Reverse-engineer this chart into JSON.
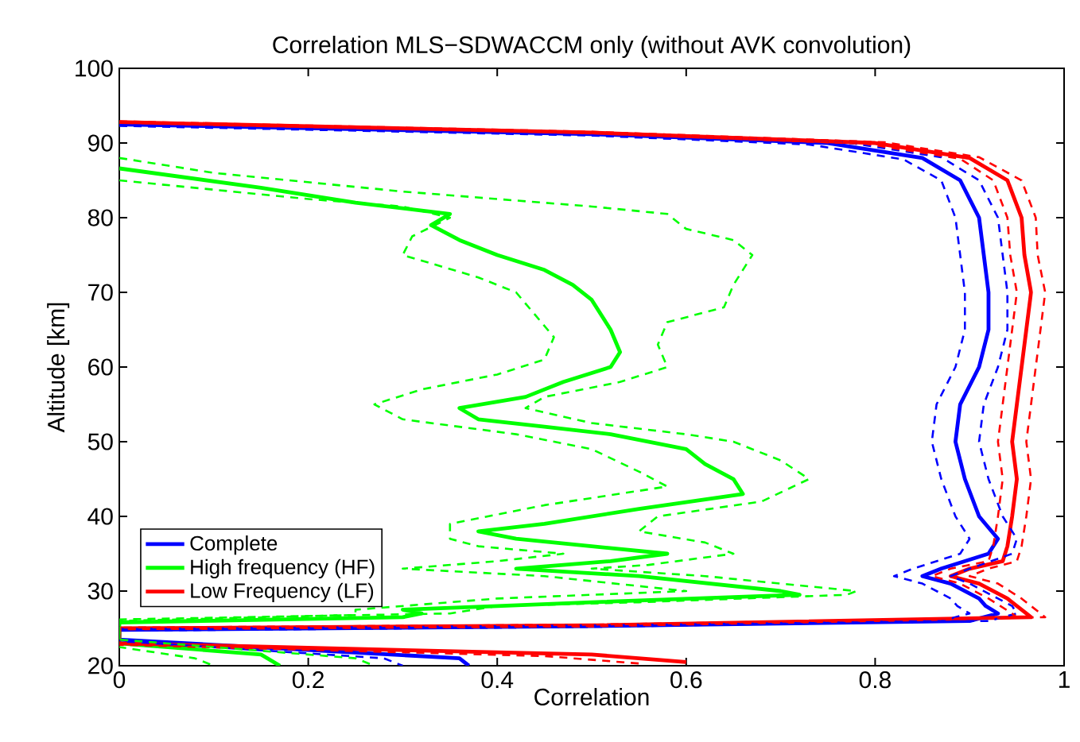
{
  "chart_data": {
    "type": "line",
    "title": "Correlation MLS−SDWACCM only (without AVK convolution)",
    "xlabel": "Correlation",
    "ylabel": "Altitude [km]",
    "xlim": [
      0,
      1
    ],
    "ylim": [
      20,
      100
    ],
    "xticks": [
      0,
      0.2,
      0.4,
      0.6,
      0.8,
      1
    ],
    "yticks": [
      20,
      30,
      40,
      50,
      60,
      70,
      80,
      90,
      100
    ],
    "grid": false,
    "legend": "bottom left",
    "marker": "none",
    "series": [
      {
        "name": "Complete",
        "color": "#0000ff",
        "line_style": "solid",
        "x": [
          0,
          0.5,
          0.75,
          0.85,
          0.89,
          0.91,
          0.915,
          0.92,
          0.92,
          0.91,
          0.89,
          0.885,
          0.895,
          0.91,
          0.93,
          0.92,
          0.87,
          0.85,
          0.88,
          0.91,
          0.917,
          0.93,
          0.9,
          0.5,
          0,
          0,
          0.36,
          0.37
        ],
        "values": [
          92.5,
          91.2,
          90,
          88,
          85,
          80,
          75,
          70,
          65,
          60,
          55,
          50,
          45,
          40,
          37,
          35,
          33,
          32,
          31,
          29,
          28,
          27,
          26,
          25.3,
          24.8,
          23.5,
          21,
          20
        ]
      },
      {
        "name": "High frequency (HF)",
        "color": "#00ff00",
        "line_style": "solid",
        "x": [
          0,
          0.15,
          0.25,
          0.35,
          0.33,
          0.36,
          0.4,
          0.45,
          0.48,
          0.5,
          0.52,
          0.53,
          0.52,
          0.47,
          0.43,
          0.36,
          0.38,
          0.45,
          0.52,
          0.6,
          0.62,
          0.65,
          0.66,
          0.55,
          0.45,
          0.38,
          0.42,
          0.5,
          0.58,
          0.52,
          0.42,
          0.55,
          0.7,
          0.72,
          0.5,
          0.4,
          0.3,
          0.32,
          0.3,
          0,
          0,
          0.15,
          0.17
        ],
        "values": [
          86.6,
          84,
          82,
          80.5,
          79,
          77,
          75,
          73,
          71,
          69,
          65,
          62,
          60,
          58,
          56,
          54.5,
          53,
          52,
          51,
          49,
          47,
          45,
          43,
          41,
          39,
          38,
          37,
          36,
          35,
          34,
          33,
          32,
          30,
          29.5,
          28.5,
          28,
          27.5,
          27,
          26.5,
          25.8,
          23,
          21.5,
          20
        ]
      },
      {
        "name": "Low Frequency (LF)",
        "color": "#ff0000",
        "line_style": "solid",
        "x": [
          0,
          0.5,
          0.8,
          0.9,
          0.94,
          0.955,
          0.958,
          0.965,
          0.96,
          0.955,
          0.95,
          0.945,
          0.95,
          0.945,
          0.94,
          0.935,
          0.9,
          0.88,
          0.91,
          0.94,
          0.96,
          0.965,
          0.5,
          0,
          0,
          0.5,
          0.6
        ],
        "values": [
          92.8,
          91.4,
          90,
          88,
          85,
          80,
          75,
          70,
          65,
          60,
          55,
          50,
          45,
          40,
          36,
          34,
          33,
          32,
          31,
          29,
          27,
          26.5,
          25.4,
          25,
          23,
          21.5,
          20.5
        ]
      },
      {
        "color": "#0000ff",
        "line_style": "dashed",
        "x": [
          0,
          0.5,
          0.73,
          0.83,
          0.87,
          0.885,
          0.89,
          0.895,
          0.895,
          0.885,
          0.865,
          0.86,
          0.87,
          0.885,
          0.9,
          0.89,
          0.84,
          0.82,
          0.85,
          0.88,
          0.887,
          0.9,
          0.87,
          0.5,
          0,
          0,
          0.28,
          0.3
        ],
        "values": [
          92.3,
          91,
          89.8,
          87.8,
          85,
          80,
          75,
          70,
          65,
          60,
          55,
          50,
          45,
          40,
          37,
          35,
          33,
          32,
          31,
          29,
          28,
          27,
          26,
          25.2,
          24.7,
          23.3,
          21,
          20
        ]
      },
      {
        "color": "#0000ff",
        "line_style": "dashed",
        "x": [
          0,
          0.5,
          0.77,
          0.87,
          0.91,
          0.93,
          0.935,
          0.94,
          0.94,
          0.93,
          0.915,
          0.91,
          0.92,
          0.935,
          0.95,
          0.945,
          0.9,
          0.88,
          0.9,
          0.93,
          0.945,
          0.95,
          0.92,
          0.5,
          0
        ],
        "values": [
          92.6,
          91.3,
          90.1,
          88.1,
          85,
          80,
          75,
          70,
          65,
          60,
          55,
          50,
          45,
          40,
          37,
          35,
          33,
          32,
          31,
          29,
          28,
          27,
          26,
          25.4,
          24.9
        ]
      },
      {
        "color": "#ff0000",
        "line_style": "dashed",
        "x": [
          0,
          0.5,
          0.79,
          0.89,
          0.925,
          0.94,
          0.943,
          0.95,
          0.945,
          0.94,
          0.935,
          0.93,
          0.935,
          0.93,
          0.925,
          0.92,
          0.88,
          0.86,
          0.89,
          0.92,
          0.945,
          0.95,
          0.5,
          0,
          0,
          0.45,
          0.55
        ],
        "values": [
          92.7,
          91.3,
          89.9,
          87.9,
          85,
          80,
          75,
          70,
          65,
          60,
          55,
          50,
          45,
          40,
          36,
          34,
          33,
          32,
          31,
          29,
          27,
          26.5,
          25.3,
          24.9,
          22.8,
          21.3,
          20.3
        ]
      },
      {
        "color": "#ff0000",
        "line_style": "dashed",
        "x": [
          0,
          0.5,
          0.81,
          0.91,
          0.955,
          0.97,
          0.972,
          0.98,
          0.975,
          0.97,
          0.965,
          0.96,
          0.965,
          0.96,
          0.955,
          0.95,
          0.92,
          0.9,
          0.93,
          0.955,
          0.975,
          0.98,
          0.5,
          0
        ],
        "values": [
          92.9,
          91.5,
          90.1,
          88.1,
          85,
          80,
          75,
          70,
          65,
          60,
          55,
          50,
          45,
          40,
          36,
          34,
          33,
          32,
          31,
          29,
          27,
          26.5,
          25.5,
          25.1
        ]
      },
      {
        "color": "#00ff00",
        "line_style": "dashed",
        "x": [
          0,
          0.2,
          0.3,
          0.35,
          0.31,
          0.3,
          0.38,
          0.42,
          0.44,
          0.46,
          0.45,
          0.4,
          0.32,
          0.27,
          0.3,
          0.42,
          0.5,
          0.55,
          0.58,
          0.45,
          0.35,
          0.35,
          0.38,
          0.47,
          0.4,
          0.3,
          0.45,
          0.6,
          0.4,
          0.25,
          0.25,
          0,
          0,
          0.08,
          0.1
        ],
        "values": [
          85,
          82.5,
          81.5,
          80,
          77.5,
          75,
          72,
          70,
          67,
          64,
          61,
          59,
          57,
          55,
          53,
          51,
          49,
          46,
          44,
          41.5,
          39,
          37,
          36,
          35,
          34,
          33,
          32,
          30,
          29,
          27.5,
          26.8,
          26,
          22.5,
          21,
          20
        ]
      },
      {
        "color": "#00ff00",
        "line_style": "dashed",
        "x": [
          0,
          0.1,
          0.3,
          0.5,
          0.58,
          0.6,
          0.65,
          0.67,
          0.65,
          0.64,
          0.58,
          0.57,
          0.58,
          0.53,
          0.45,
          0.43,
          0.5,
          0.6,
          0.65,
          0.7,
          0.73,
          0.68,
          0.57,
          0.55,
          0.62,
          0.65,
          0.56,
          0.5,
          0.62,
          0.78,
          0.77,
          0.55,
          0.4,
          0.35,
          0,
          0,
          0.25,
          0.27
        ],
        "values": [
          88,
          86,
          83.5,
          81.5,
          80.5,
          78.5,
          77,
          75,
          71,
          68,
          66,
          63,
          60,
          58,
          56,
          54.5,
          52.5,
          51,
          50,
          47.5,
          45,
          42,
          40,
          38,
          36.5,
          35,
          33.5,
          33,
          32,
          30,
          29.5,
          28.5,
          28,
          27,
          26.2,
          23.5,
          21,
          20
        ]
      }
    ]
  }
}
